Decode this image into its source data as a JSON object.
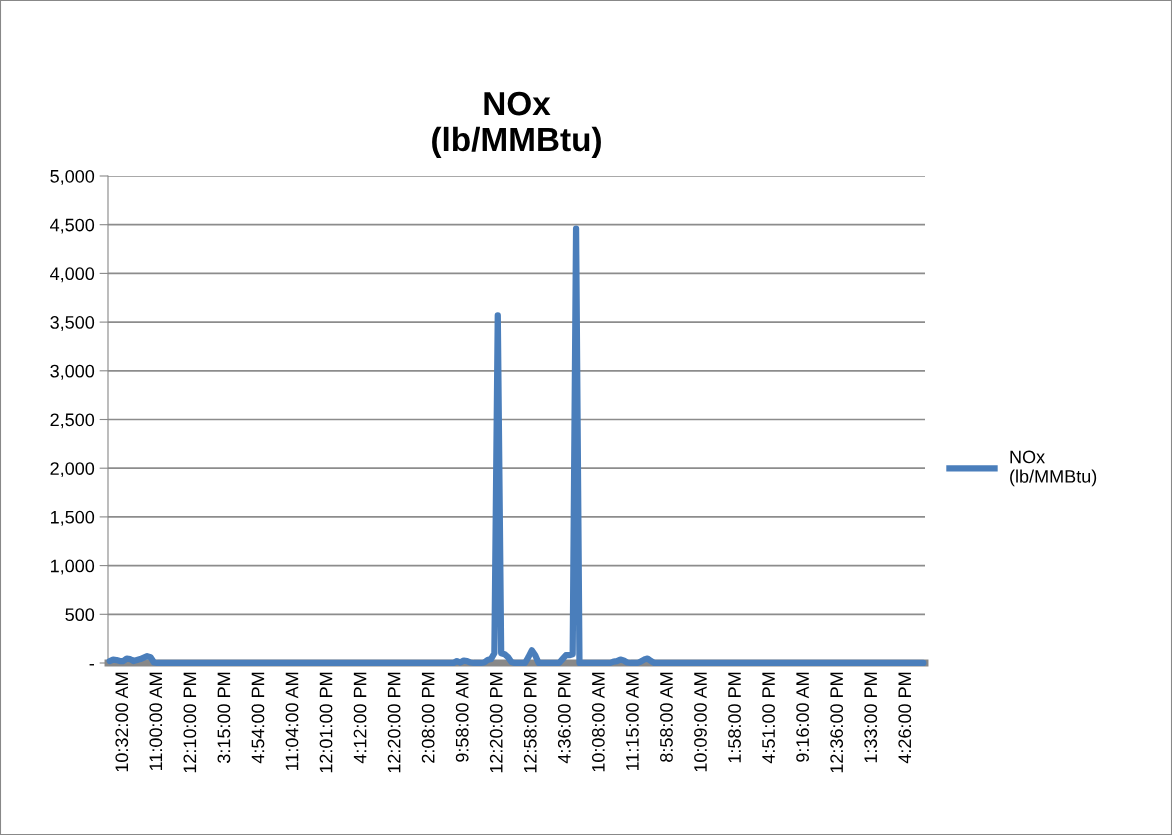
{
  "chart_data": {
    "type": "line",
    "title": "NOx\n(lb/MMBtu)",
    "categories": [
      null,
      null,
      null,
      null,
      "10:32:00 AM",
      null,
      null,
      null,
      null,
      null,
      null,
      null,
      null,
      null,
      "11:00:00 AM",
      null,
      null,
      null,
      null,
      null,
      null,
      null,
      null,
      null,
      "12:10:00 PM",
      null,
      null,
      null,
      null,
      null,
      null,
      null,
      null,
      null,
      "3:15:00 PM",
      null,
      null,
      null,
      null,
      null,
      null,
      null,
      null,
      null,
      "4:54:00 PM",
      null,
      null,
      null,
      null,
      null,
      null,
      null,
      null,
      null,
      "11:04:00 AM",
      null,
      null,
      null,
      null,
      null,
      null,
      null,
      null,
      null,
      "12:01:00 PM",
      null,
      null,
      null,
      null,
      null,
      null,
      null,
      null,
      null,
      "4:12:00 PM",
      null,
      null,
      null,
      null,
      null,
      null,
      null,
      null,
      null,
      "12:20:00 PM",
      null,
      null,
      null,
      null,
      null,
      null,
      null,
      null,
      null,
      "2:08:00 PM",
      null,
      null,
      null,
      null,
      null,
      null,
      null,
      null,
      null,
      "9:58:00 AM",
      null,
      null,
      null,
      null,
      null,
      null,
      null,
      null,
      null,
      "12:20:00 PM",
      null,
      null,
      null,
      null,
      null,
      null,
      null,
      null,
      null,
      "12:58:00 PM",
      null,
      null,
      null,
      null,
      null,
      null,
      null,
      null,
      null,
      "4:36:00 PM",
      null,
      null,
      null,
      null,
      null,
      null,
      null,
      null,
      null,
      "10:08:00 AM",
      null,
      null,
      null,
      null,
      null,
      null,
      null,
      null,
      null,
      "11:15:00 AM",
      null,
      null,
      null,
      null,
      null,
      null,
      null,
      null,
      null,
      "8:58:00 AM",
      null,
      null,
      null,
      null,
      null,
      null,
      null,
      null,
      null,
      "10:09:00 AM",
      null,
      null,
      null,
      null,
      null,
      null,
      null,
      null,
      null,
      "1:58:00 PM",
      null,
      null,
      null,
      null,
      null,
      null,
      null,
      null,
      null,
      "4:51:00 PM",
      null,
      null,
      null,
      null,
      null,
      null,
      null,
      null,
      null,
      "9:16:00 AM",
      null,
      null,
      null,
      null,
      null,
      null,
      null,
      null,
      null,
      "12:36:00 PM",
      null,
      null,
      null,
      null,
      null,
      null,
      null,
      null,
      null,
      "1:33:00 PM",
      null,
      null,
      null,
      null,
      null,
      null,
      null,
      null,
      null,
      "4:26:00 PM",
      null,
      null,
      null,
      null,
      null
    ],
    "series": [
      {
        "name": "NOx\n(lb/MMBtu)",
        "color": "#4a7ebb",
        "values": [
          20,
          35,
          30,
          20,
          20,
          45,
          40,
          20,
          30,
          40,
          55,
          70,
          60,
          5,
          0,
          0,
          0,
          0,
          0,
          0,
          0,
          0,
          0,
          0,
          0,
          0,
          0,
          0,
          0,
          0,
          0,
          0,
          0,
          0,
          0,
          0,
          0,
          0,
          0,
          0,
          0,
          0,
          0,
          0,
          0,
          0,
          0,
          0,
          0,
          0,
          0,
          0,
          0,
          0,
          0,
          0,
          0,
          0,
          0,
          0,
          0,
          0,
          0,
          0,
          0,
          0,
          0,
          0,
          0,
          0,
          0,
          0,
          0,
          0,
          0,
          0,
          0,
          0,
          0,
          0,
          0,
          0,
          0,
          0,
          0,
          0,
          0,
          0,
          0,
          0,
          0,
          0,
          0,
          0,
          0,
          0,
          0,
          0,
          0,
          0,
          0,
          0,
          20,
          5,
          25,
          20,
          5,
          0,
          0,
          0,
          5,
          30,
          40,
          100,
          3570,
          100,
          90,
          60,
          10,
          0,
          0,
          0,
          0,
          60,
          130,
          80,
          0,
          0,
          0,
          0,
          0,
          0,
          0,
          40,
          80,
          80,
          90,
          4460,
          0,
          0,
          0,
          0,
          0,
          0,
          0,
          0,
          0,
          0,
          15,
          20,
          35,
          25,
          5,
          0,
          0,
          0,
          15,
          35,
          45,
          20,
          0,
          0,
          0,
          0,
          0,
          0,
          0,
          0,
          0,
          0,
          0,
          0,
          0,
          0,
          0,
          0,
          0,
          0,
          0,
          0,
          0,
          0,
          0,
          0,
          0,
          0,
          0,
          0,
          0,
          0,
          0,
          0,
          0,
          0,
          0,
          0,
          0,
          0,
          0,
          0,
          0,
          0,
          0,
          0,
          0,
          0,
          0,
          0,
          0,
          0,
          0,
          0,
          0,
          0,
          0,
          0,
          0,
          0,
          0,
          0,
          0,
          0,
          0,
          0,
          0,
          0,
          0,
          0,
          0,
          0,
          0,
          0,
          0,
          0,
          0,
          0,
          0,
          0,
          0,
          0
        ]
      }
    ],
    "ylim": [
      0,
      5000
    ],
    "yticks": [
      {
        "value": 0,
        "label": "-"
      },
      500,
      {
        "value": 1000,
        "label": "1,000"
      },
      {
        "value": 1500,
        "label": "1,500"
      },
      {
        "value": 2000,
        "label": "2,000"
      },
      {
        "value": 2500,
        "label": "2,500"
      },
      {
        "value": 3000,
        "label": "3,000"
      },
      {
        "value": 3500,
        "label": "3,500"
      },
      {
        "value": 4000,
        "label": "4,000"
      },
      {
        "value": 4500,
        "label": "4,500"
      },
      {
        "value": 5000,
        "label": "5,000"
      }
    ],
    "grid": "y",
    "legend": "right",
    "marker": "none",
    "line_style": "solid"
  }
}
